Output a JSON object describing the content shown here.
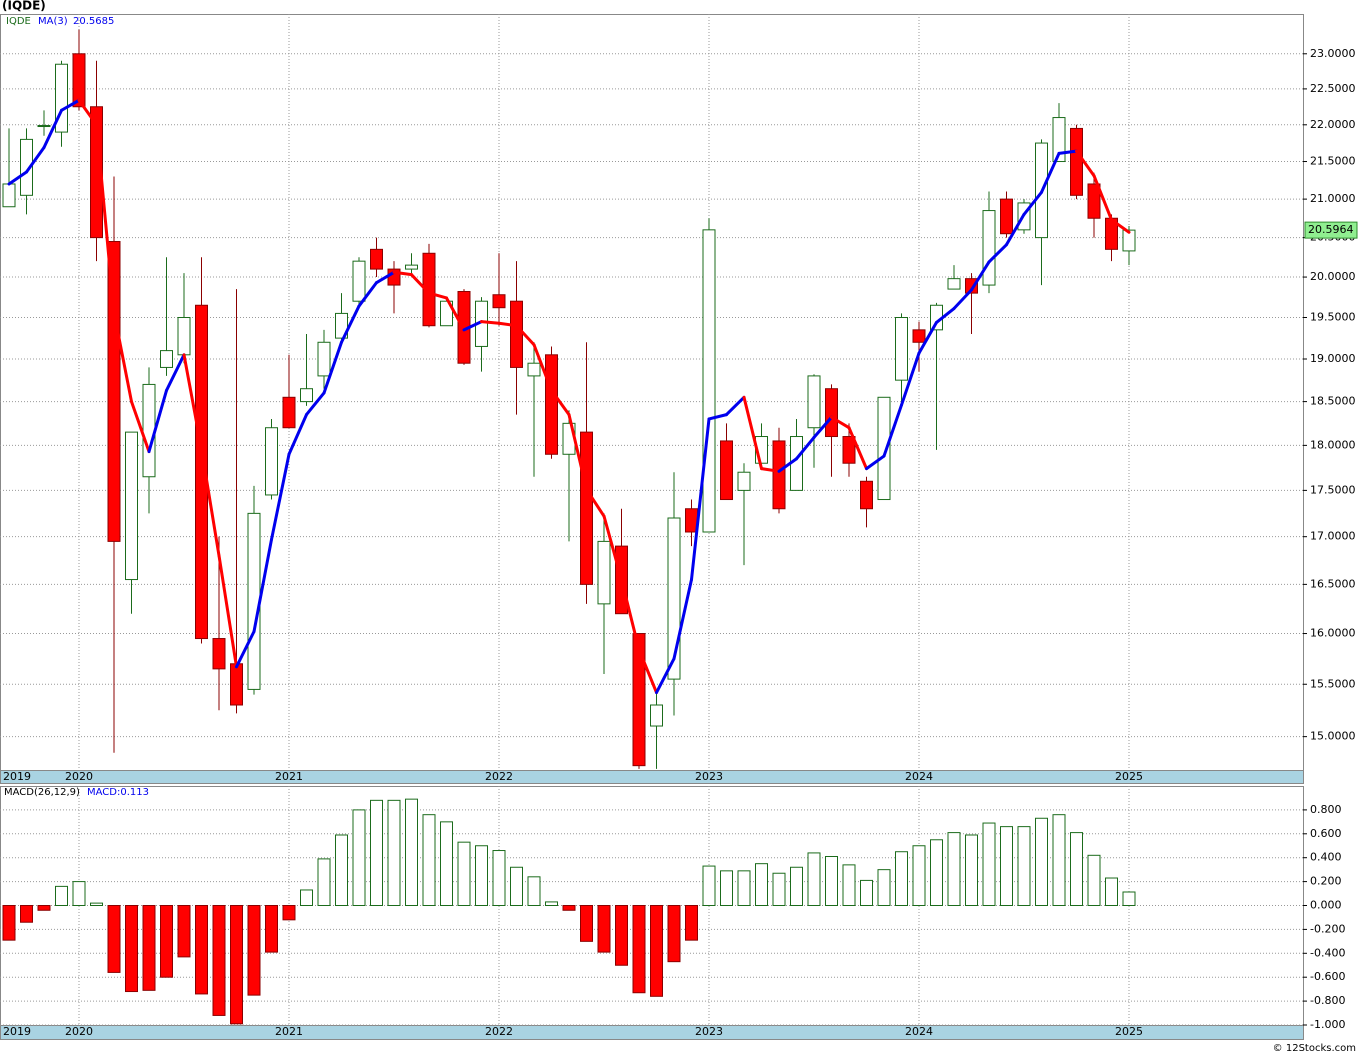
{
  "chart_data": [
    {
      "type": "candlestick",
      "title": "(IQDE)",
      "symbol": "IQDE",
      "ma_name": "MA(3)",
      "log_scale": true,
      "grid": true,
      "categories": [
        "2019",
        null,
        null,
        null,
        "2020",
        null,
        null,
        null,
        null,
        null,
        null,
        null,
        null,
        null,
        null,
        null,
        "2021",
        null,
        null,
        null,
        null,
        null,
        null,
        null,
        null,
        null,
        null,
        null,
        "2022",
        null,
        null,
        null,
        null,
        null,
        null,
        null,
        null,
        null,
        null,
        null,
        "2023",
        null,
        null,
        null,
        null,
        null,
        null,
        null,
        null,
        null,
        null,
        null,
        "2024",
        null,
        null,
        null,
        null,
        null,
        null,
        null,
        null,
        null,
        null,
        null,
        "2025"
      ],
      "open": [
        20.9,
        21.05,
        21.99,
        21.9,
        23.0,
        22.25,
        20.45,
        16.55,
        17.65,
        18.9,
        19.05,
        19.65,
        15.95,
        15.7,
        15.45,
        17.45,
        18.55,
        18.5,
        18.8,
        19.25,
        19.7,
        20.35,
        20.1,
        20.1,
        20.3,
        19.4,
        19.82,
        19.15,
        19.78,
        19.7,
        18.8,
        19.05,
        17.9,
        18.15,
        16.3,
        16.9,
        16.0,
        15.1,
        15.55,
        17.3,
        17.05,
        18.05,
        17.5,
        17.8,
        18.05,
        17.5,
        18.2,
        18.65,
        18.1,
        17.6,
        17.4,
        18.75,
        19.35,
        19.35,
        19.85,
        19.98,
        19.9,
        21.0,
        20.6,
        20.5,
        21.5,
        21.95,
        21.2,
        20.75,
        20.33
      ],
      "high": [
        21.95,
        21.95,
        22.2,
        22.9,
        23.35,
        22.9,
        21.3,
        18.15,
        18.9,
        20.25,
        20.05,
        20.25,
        17.0,
        19.85,
        17.55,
        18.3,
        19.05,
        19.3,
        19.35,
        19.8,
        20.25,
        20.5,
        20.2,
        20.3,
        20.42,
        19.75,
        19.85,
        19.75,
        20.3,
        20.2,
        19.2,
        19.15,
        18.4,
        19.2,
        17.25,
        17.3,
        16.0,
        15.45,
        17.7,
        17.4,
        20.75,
        18.25,
        17.8,
        18.25,
        18.2,
        18.3,
        18.82,
        18.7,
        18.25,
        17.65,
        18.55,
        19.55,
        19.45,
        19.68,
        20.15,
        20.05,
        21.1,
        21.1,
        21.0,
        21.8,
        22.3,
        22.0,
        21.35,
        20.8,
        20.65
      ],
      "low": [
        20.9,
        20.8,
        21.85,
        21.7,
        22.2,
        20.2,
        14.85,
        16.2,
        17.25,
        18.8,
        18.95,
        15.9,
        15.25,
        15.22,
        15.4,
        17.4,
        18.2,
        18.45,
        18.65,
        19.2,
        19.65,
        20.0,
        19.55,
        20.05,
        19.38,
        19.4,
        18.93,
        18.85,
        19.4,
        18.35,
        17.65,
        17.85,
        16.95,
        16.3,
        15.6,
        16.2,
        14.7,
        14.7,
        15.2,
        16.9,
        17.05,
        17.4,
        16.7,
        17.75,
        17.25,
        17.5,
        17.75,
        17.65,
        17.65,
        17.1,
        17.4,
        18.5,
        18.85,
        17.95,
        19.85,
        19.3,
        19.8,
        20.5,
        20.55,
        19.9,
        21.5,
        21.0,
        20.5,
        20.2,
        20.15
      ],
      "close": [
        21.2,
        21.8,
        21.99,
        22.85,
        22.25,
        20.5,
        16.95,
        18.15,
        18.7,
        19.1,
        19.5,
        15.95,
        15.65,
        15.3,
        17.25,
        18.2,
        18.2,
        18.65,
        19.2,
        19.55,
        20.2,
        20.1,
        19.9,
        20.15,
        19.4,
        19.7,
        18.95,
        19.7,
        19.62,
        18.9,
        18.95,
        17.9,
        18.25,
        16.5,
        16.95,
        16.2,
        14.73,
        15.3,
        17.2,
        17.05,
        20.6,
        17.4,
        17.7,
        18.1,
        17.3,
        18.1,
        18.8,
        18.1,
        17.8,
        17.3,
        18.55,
        19.5,
        19.2,
        19.65,
        19.98,
        19.8,
        20.85,
        20.55,
        20.95,
        21.75,
        22.1,
        21.05,
        20.75,
        20.35,
        20.5964
      ],
      "ma": [
        21.2,
        21.36,
        21.69,
        22.2,
        22.34,
        22.0,
        19.56,
        18.5,
        17.93,
        18.63,
        19.05,
        17.96,
        16.8,
        15.67,
        16.02,
        16.97,
        17.9,
        18.35,
        18.6,
        19.2,
        19.64,
        19.93,
        20.06,
        20.03,
        19.8,
        19.74,
        19.35,
        19.45,
        19.43,
        19.4,
        19.17,
        18.63,
        18.35,
        17.51,
        17.22,
        16.55,
        15.84,
        15.42,
        15.75,
        16.55,
        18.3,
        18.35,
        18.55,
        17.74,
        17.71,
        17.85,
        18.09,
        18.32,
        18.2,
        17.74,
        17.88,
        18.46,
        19.07,
        19.44,
        19.61,
        19.84,
        20.19,
        20.41,
        20.8,
        21.09,
        21.61,
        21.64,
        21.31,
        20.73,
        20.5685
      ],
      "up_color": "#1b6b1b",
      "down_color": "#ff0000",
      "ma_up_color": "#0000ee",
      "ma_down_color": "#ff0000",
      "last_price_color": "#90ee90",
      "ylim": [
        14.69,
        23.58
      ],
      "yticks": [
        {
          "value": 15,
          "label": "15.0000"
        },
        {
          "value": 15.5,
          "label": "15.5000"
        },
        {
          "value": 16,
          "label": "16.0000"
        },
        {
          "value": 16.5,
          "label": "16.5000"
        },
        {
          "value": 17,
          "label": "17.0000"
        },
        {
          "value": 17.5,
          "label": "17.5000"
        },
        {
          "value": 18,
          "label": "18.0000"
        },
        {
          "value": 18.5,
          "label": "18.5000"
        },
        {
          "value": 19,
          "label": "19.0000"
        },
        {
          "value": 19.5,
          "label": "19.5000"
        },
        {
          "value": 20,
          "label": "20.0000"
        },
        {
          "value": 20.5,
          "label": "20.5000"
        },
        {
          "value": 21,
          "label": "21.0000"
        },
        {
          "value": 21.5,
          "label": "21.5000"
        },
        {
          "value": 22,
          "label": "22.0000"
        },
        {
          "value": 22.5,
          "label": "22.5000"
        },
        {
          "value": 23,
          "label": "23.0000"
        }
      ]
    },
    {
      "type": "bar",
      "title": "MACD(26,12,9)",
      "value_caption": "MACD:",
      "grid": true,
      "pos_color": "#1b6b1b",
      "neg_color": "#ff0000",
      "values": [
        -0.29,
        -0.14,
        -0.04,
        0.16,
        0.2,
        0.02,
        -0.56,
        -0.72,
        -0.71,
        -0.6,
        -0.43,
        -0.74,
        -0.92,
        -0.99,
        -0.75,
        -0.39,
        -0.12,
        0.13,
        0.39,
        0.59,
        0.8,
        0.88,
        0.88,
        0.89,
        0.76,
        0.7,
        0.53,
        0.5,
        0.46,
        0.32,
        0.24,
        0.03,
        -0.04,
        -0.3,
        -0.39,
        -0.5,
        -0.73,
        -0.76,
        -0.47,
        -0.29,
        0.33,
        0.29,
        0.29,
        0.35,
        0.27,
        0.32,
        0.44,
        0.41,
        0.34,
        0.21,
        0.3,
        0.45,
        0.5,
        0.55,
        0.61,
        0.59,
        0.69,
        0.66,
        0.66,
        0.73,
        0.76,
        0.61,
        0.42,
        0.23,
        0.113
      ],
      "ylim": [
        -1.0,
        1.0
      ],
      "yticks": [
        {
          "value": 0.8,
          "label": "0.800"
        },
        {
          "value": 0.6,
          "label": "0.600"
        },
        {
          "value": 0.4,
          "label": "0.400"
        },
        {
          "value": 0.2,
          "label": "0.200"
        },
        {
          "value": 0,
          "label": "0.000"
        },
        {
          "value": -0.2,
          "label": "-0.200"
        },
        {
          "value": -0.4,
          "label": "-0.400"
        },
        {
          "value": -0.6,
          "label": "-0.600"
        },
        {
          "value": -0.8,
          "label": "-0.800"
        },
        {
          "value": -1.0,
          "label": "-1.000"
        }
      ]
    }
  ],
  "footer": "© 12Stocks.com"
}
